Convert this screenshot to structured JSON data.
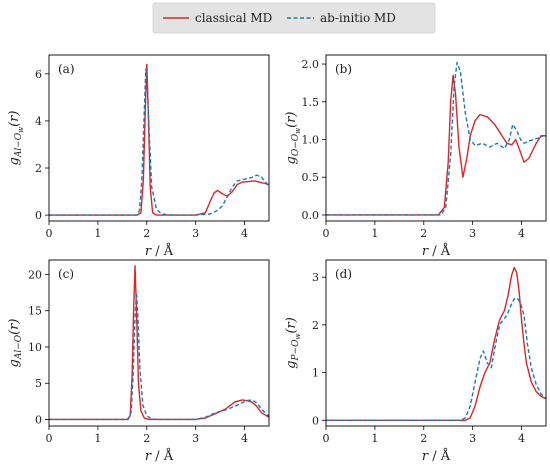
{
  "legend": {
    "entries": [
      {
        "label": "classical MD",
        "color": "#d62728",
        "dash": "solid"
      },
      {
        "label": "ab-initio MD",
        "color": "#1f77b4",
        "dash": "dashed"
      }
    ]
  },
  "chart_data": [
    {
      "type": "line",
      "panel_label": "(a)",
      "xlabel": "r / Å",
      "ylabel": "g_{Al−O_w}(r)",
      "xlim": [
        0,
        4.5
      ],
      "ylim": [
        -0.25,
        6.8
      ],
      "xticks": [
        0,
        1,
        2,
        3,
        4
      ],
      "yticks": [
        0,
        2,
        4,
        6
      ],
      "series": [
        {
          "name": "classical MD",
          "x": [
            0,
            1.8,
            1.88,
            1.93,
            1.97,
            2.0,
            2.03,
            2.07,
            2.12,
            2.2,
            2.5,
            3.0,
            3.2,
            3.3,
            3.38,
            3.45,
            3.55,
            3.65,
            3.75,
            3.85,
            3.95,
            4.05,
            4.2,
            4.35,
            4.5
          ],
          "y": [
            0,
            0,
            0.1,
            1.5,
            4.5,
            6.4,
            4.5,
            1.2,
            0.1,
            0,
            0,
            0,
            0.1,
            0.6,
            0.95,
            1.05,
            0.9,
            0.8,
            1.0,
            1.3,
            1.4,
            1.42,
            1.45,
            1.38,
            1.3
          ]
        },
        {
          "name": "ab-initio MD",
          "x": [
            0,
            1.8,
            1.85,
            1.9,
            1.95,
            1.98,
            2.0,
            2.05,
            2.1,
            2.2,
            2.3,
            2.5,
            3.0,
            3.3,
            3.45,
            3.55,
            3.65,
            3.75,
            3.85,
            3.95,
            4.05,
            4.15,
            4.25,
            4.35,
            4.45,
            4.5
          ],
          "y": [
            0,
            0,
            0.2,
            1.5,
            4.5,
            6.2,
            6.0,
            3.5,
            1.2,
            0.25,
            0.05,
            0,
            0,
            0.05,
            0.2,
            0.4,
            0.8,
            1.2,
            1.45,
            1.5,
            1.55,
            1.6,
            1.7,
            1.6,
            1.35,
            1.2
          ]
        }
      ]
    },
    {
      "type": "line",
      "panel_label": "(b)",
      "xlabel": "r / Å",
      "ylabel": "g_{O−O_w}(r)",
      "xlim": [
        0,
        4.5
      ],
      "ylim": [
        -0.08,
        2.12
      ],
      "xticks": [
        0,
        1,
        2,
        3,
        4
      ],
      "yticks": [
        0.0,
        0.5,
        1.0,
        1.5,
        2.0
      ],
      "ytick_labels": [
        "0.0",
        "0.5",
        "1.0",
        "1.5",
        "2.0"
      ],
      "series": [
        {
          "name": "classical MD",
          "x": [
            0,
            2.3,
            2.42,
            2.5,
            2.55,
            2.6,
            2.65,
            2.72,
            2.8,
            2.88,
            2.95,
            3.05,
            3.15,
            3.3,
            3.45,
            3.6,
            3.7,
            3.8,
            3.88,
            3.95,
            4.05,
            4.15,
            4.3,
            4.4,
            4.5
          ],
          "y": [
            0,
            0,
            0.1,
            0.7,
            1.5,
            1.85,
            1.6,
            0.9,
            0.5,
            0.75,
            1.05,
            1.25,
            1.33,
            1.3,
            1.2,
            1.05,
            0.95,
            0.93,
            1.0,
            0.88,
            0.7,
            0.75,
            0.95,
            1.05,
            1.05
          ]
        },
        {
          "name": "ab-initio MD",
          "x": [
            0,
            2.35,
            2.45,
            2.55,
            2.62,
            2.68,
            2.75,
            2.85,
            2.95,
            3.05,
            3.2,
            3.35,
            3.5,
            3.65,
            3.75,
            3.82,
            3.9,
            3.98,
            4.05,
            4.15,
            4.25,
            4.35,
            4.45,
            4.5
          ],
          "y": [
            0,
            0,
            0.1,
            0.8,
            1.7,
            2.02,
            1.9,
            1.35,
            1.0,
            0.92,
            0.95,
            0.9,
            0.95,
            0.88,
            1.0,
            1.2,
            1.12,
            1.0,
            0.95,
            0.98,
            1.0,
            1.02,
            1.05,
            1.05
          ]
        }
      ]
    },
    {
      "type": "line",
      "panel_label": "(c)",
      "xlabel": "r / Å",
      "ylabel": "g_{Al−O}(r)",
      "xlim": [
        0,
        4.5
      ],
      "ylim": [
        -0.9,
        22.0
      ],
      "xticks": [
        0,
        1,
        2,
        3,
        4
      ],
      "yticks": [
        0,
        5,
        10,
        15,
        20
      ],
      "series": [
        {
          "name": "classical MD",
          "x": [
            0,
            1.6,
            1.66,
            1.7,
            1.73,
            1.76,
            1.79,
            1.83,
            1.88,
            1.95,
            2.05,
            2.2,
            3.0,
            3.2,
            3.4,
            3.6,
            3.8,
            3.95,
            4.05,
            4.15,
            4.25,
            4.35,
            4.5
          ],
          "y": [
            0,
            0,
            0.5,
            6,
            15,
            21.2,
            15,
            5,
            1.2,
            0.2,
            0,
            0,
            0,
            0.2,
            0.8,
            1.4,
            2.4,
            2.7,
            2.6,
            2.4,
            1.8,
            0.9,
            0.3
          ]
        },
        {
          "name": "ab-initio MD",
          "x": [
            0,
            1.62,
            1.68,
            1.72,
            1.76,
            1.79,
            1.82,
            1.86,
            1.92,
            2.0,
            2.1,
            2.2,
            3.0,
            3.2,
            3.4,
            3.6,
            3.8,
            3.95,
            4.05,
            4.15,
            4.25,
            4.35,
            4.45,
            4.5
          ],
          "y": [
            0,
            0,
            1,
            6,
            14,
            17.5,
            14,
            7,
            2,
            0.5,
            0.1,
            0,
            0,
            0.3,
            0.9,
            1.3,
            1.8,
            2.3,
            2.6,
            2.7,
            2.3,
            1.4,
            0.7,
            0.5
          ]
        }
      ]
    },
    {
      "type": "line",
      "panel_label": "(d)",
      "xlabel": "r / Å",
      "ylabel": "g_{P−O_w}(r)",
      "xlim": [
        0,
        4.5
      ],
      "ylim": [
        -0.12,
        3.36
      ],
      "xticks": [
        0,
        1,
        2,
        3,
        4
      ],
      "yticks": [
        0,
        1,
        2,
        3
      ],
      "series": [
        {
          "name": "classical MD",
          "x": [
            0,
            2.85,
            2.95,
            3.05,
            3.15,
            3.25,
            3.35,
            3.45,
            3.55,
            3.65,
            3.72,
            3.8,
            3.85,
            3.9,
            3.95,
            4.0,
            4.05,
            4.1,
            4.2,
            4.3,
            4.4,
            4.5
          ],
          "y": [
            0,
            0,
            0.05,
            0.3,
            0.7,
            1.0,
            1.2,
            1.7,
            2.1,
            2.3,
            2.6,
            3.05,
            3.2,
            3.1,
            2.7,
            2.1,
            1.6,
            1.2,
            0.8,
            0.6,
            0.5,
            0.45
          ]
        },
        {
          "name": "ab-initio MD",
          "x": [
            0,
            2.75,
            2.85,
            2.95,
            3.05,
            3.15,
            3.22,
            3.3,
            3.38,
            3.45,
            3.55,
            3.62,
            3.7,
            3.78,
            3.85,
            3.92,
            3.98,
            4.05,
            4.12,
            4.2,
            4.3,
            4.4,
            4.5
          ],
          "y": [
            0,
            0,
            0.05,
            0.3,
            0.8,
            1.3,
            1.45,
            1.2,
            1.1,
            1.5,
            2.0,
            2.1,
            2.2,
            2.4,
            2.55,
            2.55,
            2.45,
            2.2,
            1.6,
            1.1,
            0.75,
            0.55,
            0.45
          ]
        }
      ]
    }
  ]
}
